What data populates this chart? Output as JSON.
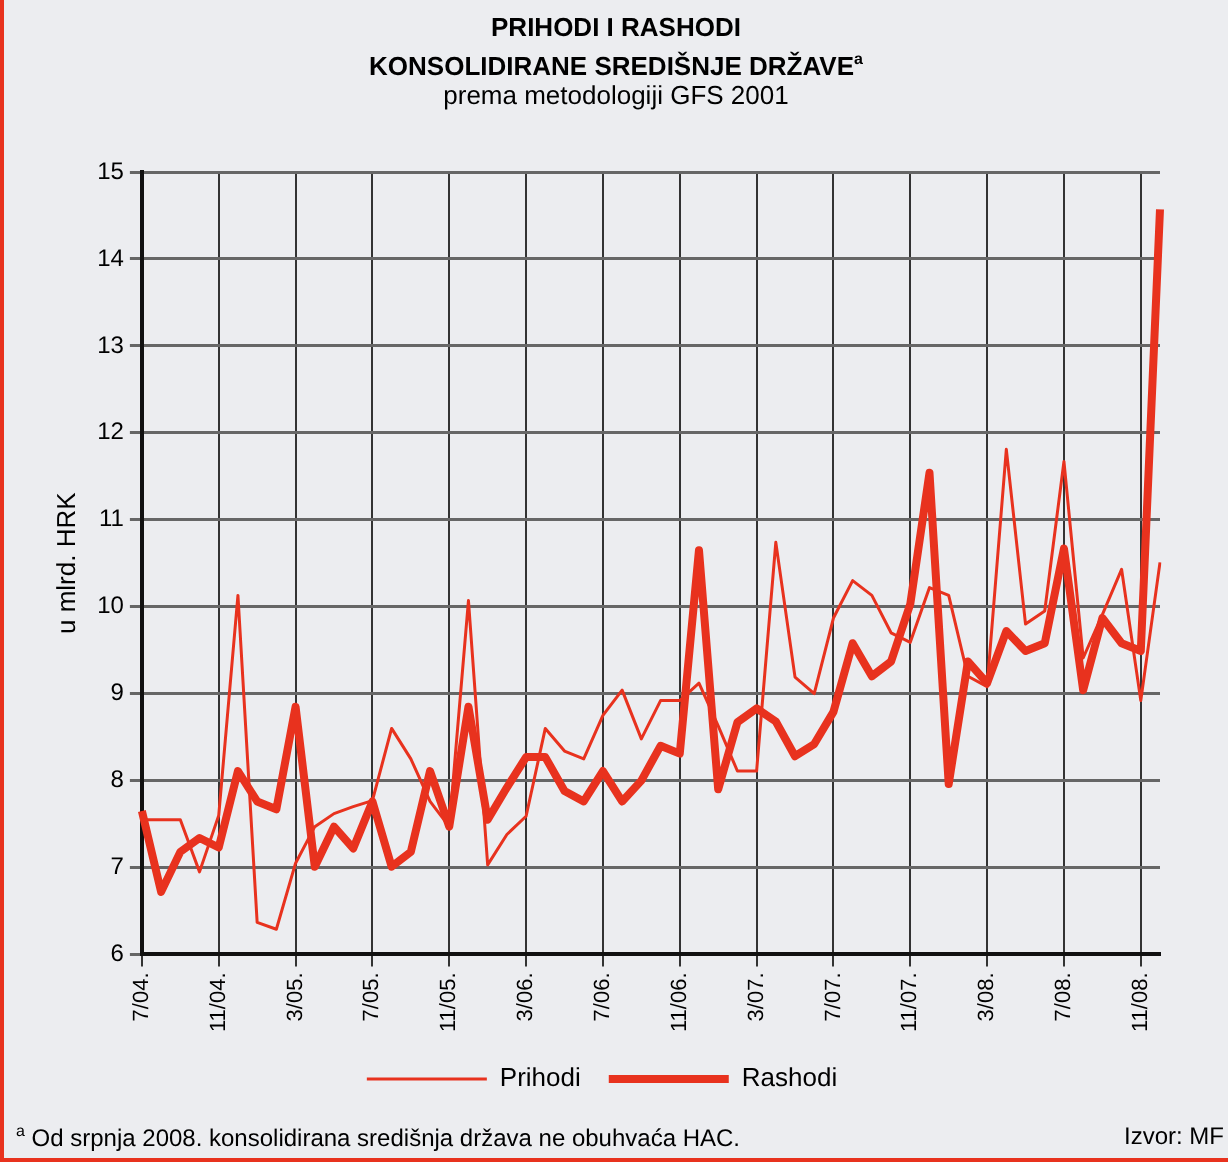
{
  "chart_data": {
    "type": "line",
    "title": "PRIHODI I RASHODI\nKONSOLIDIRANE SREDIŠNJE DRŽAVE$^{a}$",
    "subtitle": "prema metodologiji GFS 2001",
    "ylabel": "u mlrd. HRK",
    "categories": [
      "7/04.",
      null,
      null,
      null,
      "11/04.",
      null,
      null,
      null,
      "3/05.",
      null,
      null,
      null,
      "7/05.",
      null,
      null,
      null,
      "11/05.",
      null,
      null,
      null,
      "3/06.",
      null,
      null,
      null,
      "7/06.",
      null,
      null,
      null,
      "11/06.",
      null,
      null,
      null,
      "3/07.",
      null,
      null,
      null,
      "7/07.",
      null,
      null,
      null,
      "11/07.",
      null,
      null,
      null,
      "3/08.",
      null,
      null,
      null,
      "7/08.",
      null,
      null,
      null,
      "11/08.",
      null
    ],
    "series": [
      {
        "name": "Prihodi",
        "color": "#e8321e",
        "values": [
          7.55,
          7.55,
          7.55,
          6.95,
          7.6,
          10.13,
          6.37,
          6.29,
          7.05,
          7.47,
          7.62,
          7.7,
          7.77,
          8.6,
          8.25,
          7.76,
          7.47,
          10.07,
          7.03,
          7.38,
          7.59,
          8.6,
          8.34,
          8.25,
          8.75,
          9.04,
          8.48,
          8.92,
          8.92,
          9.12,
          8.63,
          8.11,
          8.11,
          10.74,
          9.19,
          9.0,
          9.87,
          10.3,
          10.13,
          9.7,
          9.59,
          10.22,
          10.13,
          9.2,
          9.08,
          11.81,
          9.8,
          9.95,
          11.67,
          9.41,
          9.91,
          10.43,
          8.92,
          10.51
        ]
      },
      {
        "name": "Rashodi",
        "color": "#e8321e",
        "values": [
          7.65,
          6.72,
          7.18,
          7.34,
          7.23,
          8.11,
          7.76,
          7.67,
          8.85,
          7.01,
          7.47,
          7.22,
          7.76,
          7.01,
          7.18,
          8.11,
          7.47,
          8.85,
          7.55,
          7.92,
          8.27,
          8.27,
          7.88,
          7.76,
          8.11,
          7.76,
          8.0,
          8.4,
          8.31,
          10.65,
          7.9,
          8.67,
          8.83,
          8.68,
          8.28,
          8.42,
          8.79,
          9.58,
          9.2,
          9.37,
          10.03,
          11.54,
          7.96,
          9.37,
          9.12,
          9.72,
          9.49,
          9.58,
          10.67,
          9.04,
          9.87,
          9.58,
          9.49,
          14.57
        ]
      }
    ],
    "ylim": [
      6,
      15
    ],
    "yticks": [
      6,
      7,
      8,
      9,
      10,
      11,
      12,
      13,
      14,
      15
    ],
    "grid": true,
    "legend": "bottom",
    "marker": "none",
    "line_style": "solid",
    "annotations": [
      "$^{a}$ Od srpnja 2008. konsolidirana središnja država ne obuhvaća HAC.",
      "Izvor: MF"
    ]
  }
}
